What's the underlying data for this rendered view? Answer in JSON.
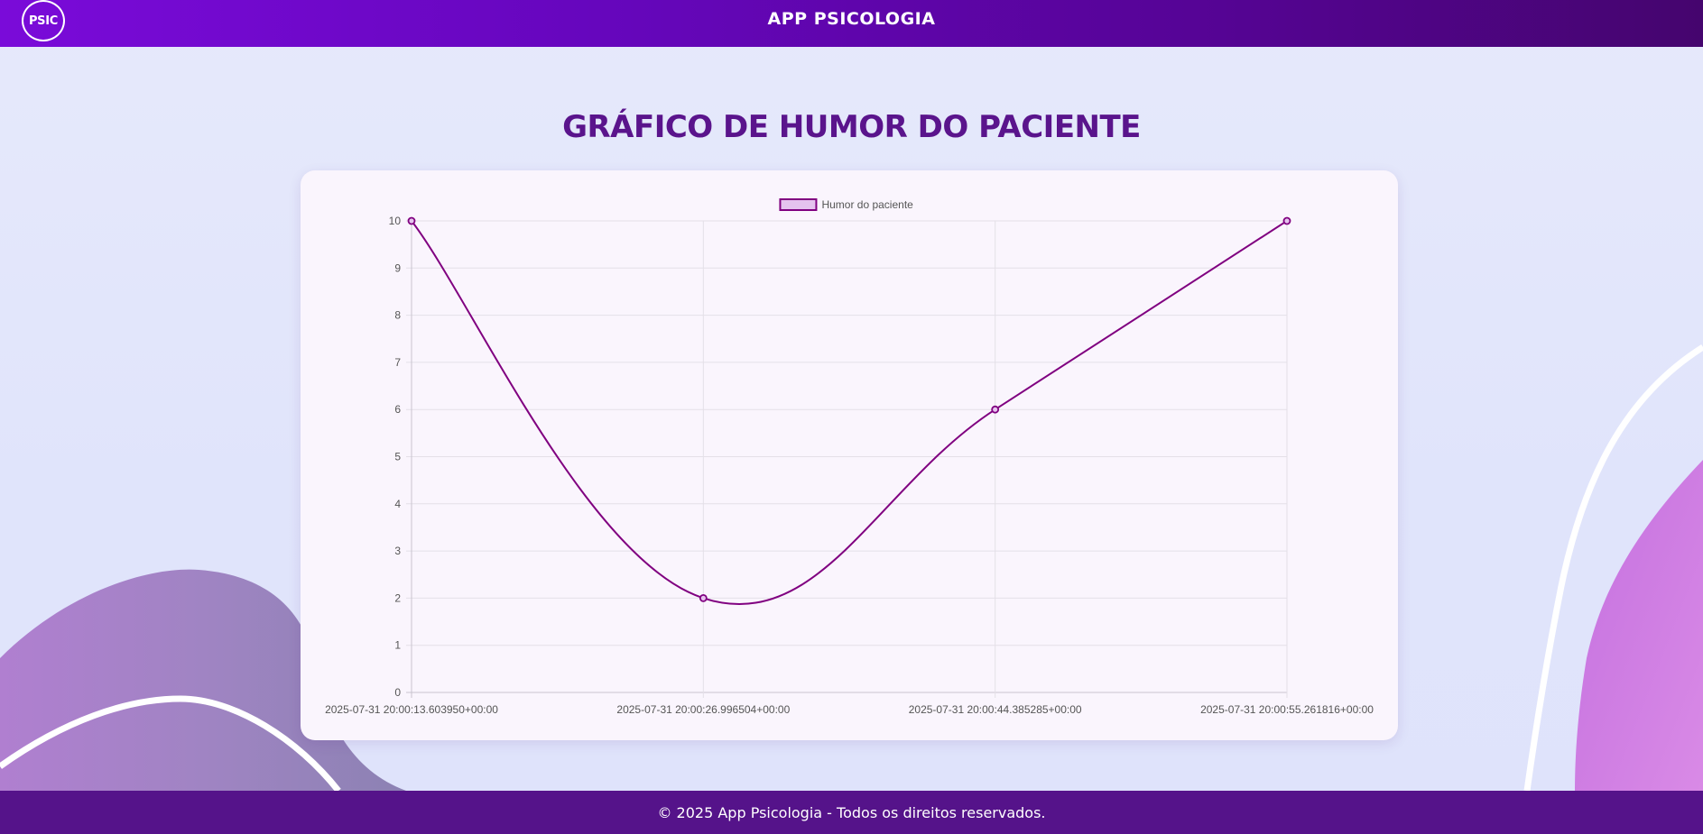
{
  "header": {
    "logo_text": "PSIC",
    "app_title": "APP PSICOLOGIA"
  },
  "page": {
    "title": "GRÁFICO DE HUMOR DO PACIENTE"
  },
  "footer": {
    "text": "© 2025 App Psicologia - Todos os direitos reservados."
  },
  "colors": {
    "header_start": "#7a0bd9",
    "header_end": "#45056e",
    "title": "#5a148c",
    "line": "#800080",
    "legend_fill": "#e5c3ee",
    "footer": "#55138a"
  },
  "chart_data": {
    "type": "line",
    "title": "",
    "xlabel": "",
    "ylabel": "",
    "ylim": [
      0,
      10
    ],
    "yticks": [
      0,
      1,
      2,
      3,
      4,
      5,
      6,
      7,
      8,
      9,
      10
    ],
    "grid": true,
    "legend_position": "top",
    "categories": [
      "2025-07-31 20:00:13.603950+00:00",
      "2025-07-31 20:00:26.996504+00:00",
      "2025-07-31 20:00:44.385285+00:00",
      "2025-07-31 20:00:55.261816+00:00"
    ],
    "series": [
      {
        "name": "Humor do paciente",
        "values": [
          10,
          2,
          6,
          10
        ]
      }
    ]
  }
}
